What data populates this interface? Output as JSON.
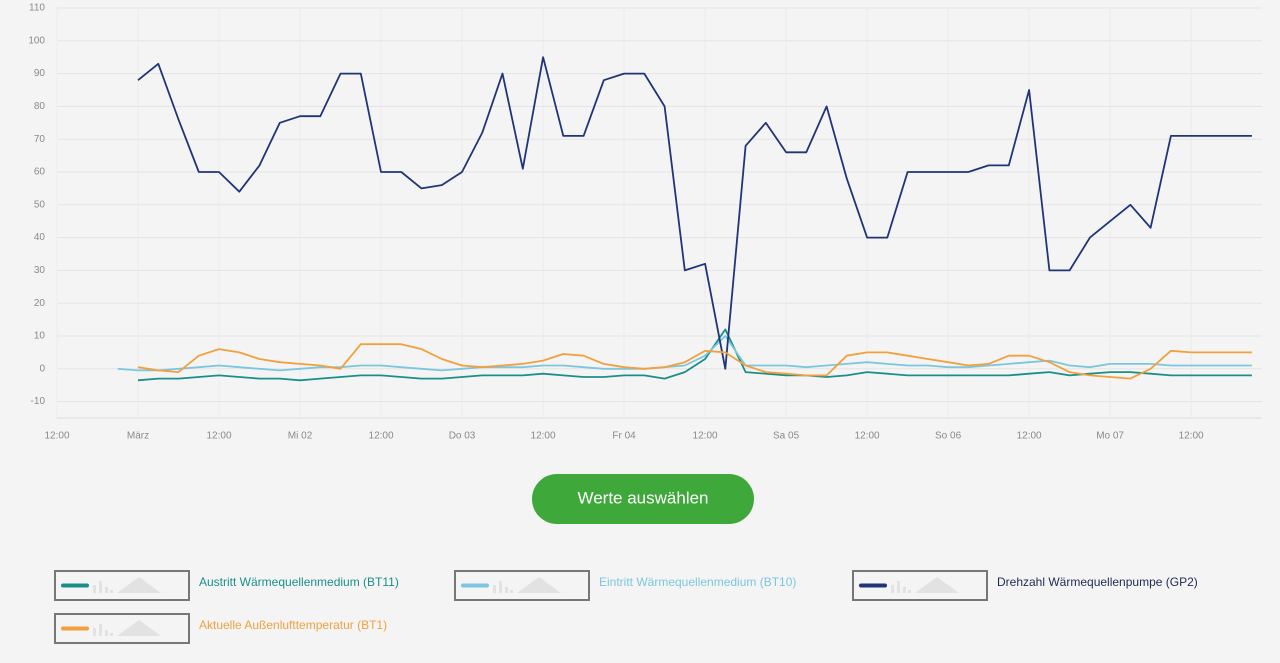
{
  "chart_data": {
    "type": "line",
    "x": [
      -3,
      0,
      3,
      6,
      9,
      12,
      15,
      18,
      21,
      24,
      27,
      30,
      33,
      36,
      39,
      42,
      45,
      48,
      51,
      54,
      57,
      60,
      63,
      66,
      69,
      72,
      75,
      78,
      81,
      84,
      87,
      90,
      93,
      96,
      99,
      102,
      105,
      108,
      111,
      114,
      117,
      120,
      123,
      126,
      129,
      132,
      135,
      138,
      141,
      144,
      147,
      150,
      153,
      156,
      159,
      162,
      165
    ],
    "xlim": [
      -12,
      166.5
    ],
    "xticks": [
      {
        "value": -12,
        "label": "12:00"
      },
      {
        "value": 0,
        "label": "März"
      },
      {
        "value": 12,
        "label": "12:00"
      },
      {
        "value": 24,
        "label": "Mi 02"
      },
      {
        "value": 36,
        "label": "12:00"
      },
      {
        "value": 48,
        "label": "Do 03"
      },
      {
        "value": 60,
        "label": "12:00"
      },
      {
        "value": 72,
        "label": "Fr 04"
      },
      {
        "value": 84,
        "label": "12:00"
      },
      {
        "value": 96,
        "label": "Sa 05"
      },
      {
        "value": 108,
        "label": "12:00"
      },
      {
        "value": 120,
        "label": "So 06"
      },
      {
        "value": 132,
        "label": "12:00"
      },
      {
        "value": 144,
        "label": "Mo 07"
      },
      {
        "value": 156,
        "label": "12:00"
      }
    ],
    "ylim": [
      -15,
      110
    ],
    "yticks": [
      -10,
      0,
      10,
      20,
      30,
      40,
      50,
      60,
      70,
      80,
      90,
      100,
      110
    ],
    "grid": true,
    "series": [
      {
        "name": "Austritt Wärmequellenmedium (BT11)",
        "color": "#1a8f8a",
        "values": [
          null,
          -3.5,
          -3,
          -3,
          -2.5,
          -2,
          -2.5,
          -3,
          -3,
          -3.5,
          -3,
          -2.5,
          -2,
          -2,
          -2.5,
          -3,
          -3,
          -2.5,
          -2,
          -2,
          -2,
          -1.5,
          -2,
          -2.5,
          -2.5,
          -2,
          -2,
          -3,
          -1,
          3,
          12,
          -1,
          -1.5,
          -2,
          -2,
          -2.5,
          -2,
          -1,
          -1.5,
          -2,
          -2,
          -2,
          -2,
          -2,
          -2,
          -1.5,
          -1,
          -2,
          -1.5,
          -1,
          -1,
          -1.5,
          -2,
          -2,
          -2,
          -2,
          -2
        ]
      },
      {
        "name": "Eintritt Wärmequellenmedium (BT10)",
        "color": "#7cc6e0",
        "values": [
          0,
          -0.5,
          -0.5,
          0,
          0.5,
          1,
          0.5,
          0,
          -0.5,
          0,
          0.5,
          0.5,
          1,
          1,
          0.5,
          0,
          -0.5,
          0,
          0.5,
          0.5,
          0.5,
          1,
          1,
          0.5,
          0,
          0,
          0,
          0.5,
          1,
          4,
          10,
          1,
          1,
          1,
          0.5,
          1,
          1.5,
          2,
          1.5,
          1,
          1,
          0.5,
          0.5,
          1,
          1.5,
          2,
          2.5,
          1,
          0.5,
          1.5,
          1.5,
          1.5,
          1,
          1,
          1,
          1,
          1
        ]
      },
      {
        "name": "Drehzahl Wärmequellenpumpe (GP2)",
        "color": "#1f3577",
        "values": [
          null,
          88,
          93,
          76,
          60,
          60,
          54,
          62,
          75,
          77,
          77,
          90,
          90,
          60,
          60,
          55,
          56,
          60,
          72,
          90,
          61,
          95,
          71,
          71,
          88,
          90,
          90,
          80,
          30,
          32,
          0,
          68,
          75,
          66,
          66,
          80,
          58,
          40,
          40,
          60,
          60,
          60,
          60,
          62,
          62,
          85,
          30,
          30,
          40,
          45,
          50,
          43,
          71,
          71,
          71,
          71,
          71
        ]
      },
      {
        "name": "Aktuelle Außenlufttemperatur (BT1)",
        "color": "#f2a03d",
        "values": [
          null,
          0.5,
          -0.5,
          -1,
          4,
          6,
          5,
          3,
          2,
          1.5,
          1,
          0,
          7.5,
          7.5,
          7.5,
          6,
          3,
          1,
          0.5,
          1,
          1.5,
          2.5,
          4.5,
          4,
          1.5,
          0.5,
          0,
          0.5,
          2,
          5.5,
          5,
          1,
          -1,
          -1.5,
          -2,
          -2,
          4,
          5,
          5,
          4,
          3,
          2,
          1,
          1.5,
          4,
          4,
          2,
          -1,
          -2,
          -2.5,
          -3,
          0,
          5.5,
          5,
          5,
          5,
          5
        ]
      }
    ],
    "button": "Werte auswählen"
  }
}
